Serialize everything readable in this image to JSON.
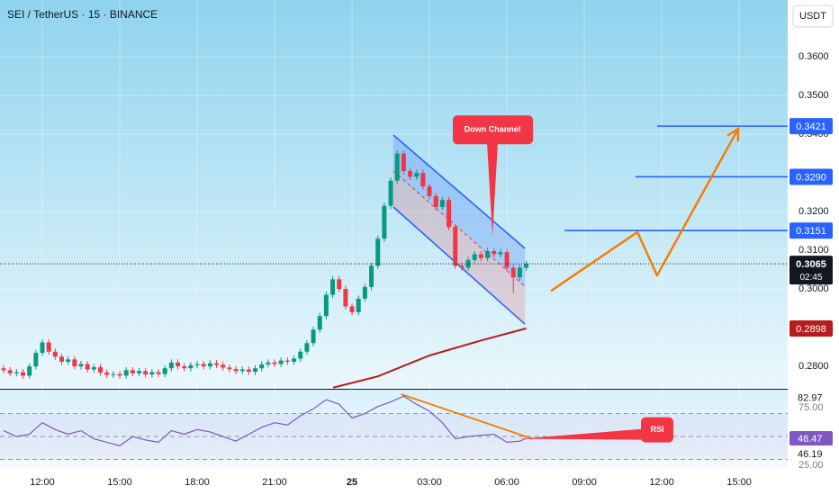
{
  "chart_data": [
    {
      "type": "candlestick",
      "title": "SEI / TetherUS · 15 · BINANCE",
      "currency": "USDT",
      "countdown": "02:45",
      "xlim": [
        10.36,
        40.88
      ],
      "xticks": [
        {
          "value": 12,
          "label": "12:00"
        },
        {
          "value": 15,
          "label": "15:00"
        },
        {
          "value": 18,
          "label": "18:00"
        },
        {
          "value": 21,
          "label": "21:00"
        },
        {
          "value": 24,
          "label": "25"
        },
        {
          "value": 27,
          "label": "03:00"
        },
        {
          "value": 30,
          "label": "06:00"
        },
        {
          "value": 33,
          "label": "09:00"
        },
        {
          "value": 36,
          "label": "12:00"
        },
        {
          "value": 39,
          "label": "15:00"
        }
      ],
      "ylim": [
        0.2742,
        0.3747
      ],
      "yticks": [
        {
          "value": 0.36,
          "label": "0.3600"
        },
        {
          "value": 0.35,
          "label": "0.3500"
        },
        {
          "value": 0.34,
          "label": "0.3400"
        },
        {
          "value": 0.32,
          "label": "0.3200"
        },
        {
          "value": 0.31,
          "label": "0.3100"
        },
        {
          "value": 0.3,
          "label": "0.3000"
        },
        {
          "value": 0.28,
          "label": "0.2800"
        }
      ],
      "grid": true,
      "up_color": "#089981",
      "down_color": "#f23645",
      "x": [
        10.5,
        10.75,
        11,
        11.25,
        11.5,
        11.75,
        12,
        12.25,
        12.5,
        12.75,
        13,
        13.25,
        13.5,
        13.75,
        14,
        14.25,
        14.5,
        14.75,
        15,
        15.25,
        15.5,
        15.75,
        16,
        16.25,
        16.5,
        16.75,
        17,
        17.25,
        17.5,
        17.75,
        18,
        18.25,
        18.5,
        18.75,
        19,
        19.25,
        19.5,
        19.75,
        20,
        20.25,
        20.5,
        20.75,
        21,
        21.25,
        21.5,
        21.75,
        22,
        22.25,
        22.5,
        22.75,
        23,
        23.25,
        23.5,
        23.75,
        24,
        24.25,
        24.5,
        24.75,
        25,
        25.25,
        25.5,
        25.75,
        26,
        26.25,
        26.5,
        26.75,
        27,
        27.25,
        27.5,
        27.75,
        28,
        28.25,
        28.5,
        28.75,
        29,
        29.25,
        29.5,
        29.75,
        30,
        30.25,
        30.5,
        30.75
      ],
      "open": [
        0.2795,
        0.279,
        0.2782,
        0.2785,
        0.2776,
        0.28,
        0.2835,
        0.2862,
        0.2838,
        0.2825,
        0.2812,
        0.2818,
        0.28,
        0.2806,
        0.2792,
        0.2798,
        0.2784,
        0.2778,
        0.278,
        0.2776,
        0.279,
        0.2782,
        0.2788,
        0.2779,
        0.2785,
        0.278,
        0.2795,
        0.281,
        0.28,
        0.2795,
        0.2803,
        0.2806,
        0.28,
        0.2808,
        0.2804,
        0.2797,
        0.2793,
        0.2788,
        0.2792,
        0.2786,
        0.2795,
        0.2805,
        0.281,
        0.2806,
        0.2815,
        0.2812,
        0.282,
        0.2838,
        0.286,
        0.2895,
        0.293,
        0.2985,
        0.3025,
        0.3,
        0.2955,
        0.294,
        0.2975,
        0.3005,
        0.306,
        0.313,
        0.3215,
        0.328,
        0.335,
        0.3305,
        0.329,
        0.33,
        0.3265,
        0.324,
        0.3212,
        0.323,
        0.316,
        0.306,
        0.3055,
        0.3075,
        0.309,
        0.308,
        0.3098,
        0.309,
        0.3095,
        0.3055,
        0.303,
        0.3055
      ],
      "high": [
        0.2803,
        0.2798,
        0.2793,
        0.2793,
        0.2808,
        0.2843,
        0.287,
        0.287,
        0.2846,
        0.2833,
        0.2826,
        0.2826,
        0.2814,
        0.2814,
        0.2806,
        0.2806,
        0.2792,
        0.2788,
        0.2788,
        0.2798,
        0.2798,
        0.2796,
        0.2796,
        0.2793,
        0.2793,
        0.2803,
        0.2818,
        0.2818,
        0.2808,
        0.2811,
        0.2814,
        0.2814,
        0.2816,
        0.2816,
        0.2812,
        0.2805,
        0.2801,
        0.28,
        0.28,
        0.2803,
        0.2813,
        0.2818,
        0.2818,
        0.2823,
        0.2823,
        0.2828,
        0.2846,
        0.2868,
        0.2903,
        0.2938,
        0.2993,
        0.3033,
        0.3033,
        0.3008,
        0.2963,
        0.2983,
        0.3013,
        0.3068,
        0.3138,
        0.3223,
        0.3288,
        0.3358,
        0.3358,
        0.3313,
        0.3308,
        0.3308,
        0.3273,
        0.3248,
        0.3238,
        0.3238,
        0.3168,
        0.3068,
        0.3083,
        0.3098,
        0.3098,
        0.3106,
        0.3106,
        0.3103,
        0.3103,
        0.3063,
        0.3063,
        0.3073
      ],
      "low": [
        0.2782,
        0.2774,
        0.2774,
        0.2768,
        0.2768,
        0.2792,
        0.2827,
        0.283,
        0.2817,
        0.2804,
        0.2804,
        0.2792,
        0.2792,
        0.2784,
        0.2784,
        0.2776,
        0.277,
        0.277,
        0.2768,
        0.2768,
        0.2774,
        0.2774,
        0.2771,
        0.2771,
        0.2772,
        0.2772,
        0.2787,
        0.2792,
        0.2787,
        0.2787,
        0.2795,
        0.2792,
        0.2792,
        0.2796,
        0.2789,
        0.2785,
        0.278,
        0.278,
        0.2778,
        0.2778,
        0.2787,
        0.2797,
        0.2798,
        0.2798,
        0.2804,
        0.2804,
        0.2812,
        0.283,
        0.2852,
        0.2887,
        0.2922,
        0.2977,
        0.2992,
        0.2947,
        0.2932,
        0.2932,
        0.2967,
        0.2997,
        0.3052,
        0.3122,
        0.3207,
        0.3272,
        0.3297,
        0.3282,
        0.3282,
        0.3257,
        0.3232,
        0.3204,
        0.3204,
        0.3152,
        0.3052,
        0.3047,
        0.3047,
        0.3067,
        0.3072,
        0.3072,
        0.3082,
        0.3082,
        0.3047,
        0.299,
        0.3022,
        0.3047
      ],
      "close": [
        0.279,
        0.2782,
        0.2785,
        0.2776,
        0.28,
        0.2835,
        0.2862,
        0.2838,
        0.2825,
        0.2812,
        0.2818,
        0.28,
        0.2806,
        0.2792,
        0.2798,
        0.2784,
        0.2778,
        0.278,
        0.2776,
        0.279,
        0.2782,
        0.2788,
        0.2779,
        0.2785,
        0.278,
        0.2795,
        0.281,
        0.28,
        0.2795,
        0.2803,
        0.2806,
        0.28,
        0.2808,
        0.2804,
        0.2797,
        0.2793,
        0.2788,
        0.2792,
        0.2786,
        0.2795,
        0.2805,
        0.281,
        0.2806,
        0.2815,
        0.2812,
        0.282,
        0.2838,
        0.286,
        0.2895,
        0.293,
        0.2985,
        0.3025,
        0.3,
        0.2955,
        0.294,
        0.2975,
        0.3005,
        0.306,
        0.313,
        0.3215,
        0.328,
        0.335,
        0.3305,
        0.329,
        0.33,
        0.3265,
        0.324,
        0.3212,
        0.323,
        0.316,
        0.306,
        0.3055,
        0.3075,
        0.309,
        0.308,
        0.3098,
        0.309,
        0.3095,
        0.3055,
        0.303,
        0.3055,
        0.3065
      ],
      "moving_average": {
        "color": "#b71c1c",
        "x": [
          23.27,
          25,
          27,
          29,
          30.75
        ],
        "values": [
          0.2745,
          0.2774,
          0.2828,
          0.2867,
          0.2898
        ]
      },
      "levels": [
        {
          "from": 35.82,
          "value": 0.3421
        },
        {
          "from": 34.98,
          "value": 0.329,
          "label": "0.3290"
        },
        {
          "from": 32.23,
          "value": 0.3151
        }
      ],
      "level_color": "#2962ff",
      "channel": {
        "x": [
          25.6,
          30.7
        ],
        "upper": [
          0.3398,
          0.3105
        ],
        "lower": [
          0.3212,
          0.2909
        ]
      },
      "projection": {
        "color": "#f57c00",
        "x": [
          31.71,
          35.06,
          35.82,
          38.96
        ],
        "values": [
          0.2995,
          0.3147,
          0.3035,
          0.3414
        ]
      },
      "callout": {
        "text": "Down Channel",
        "x": 29.44,
        "value": 0.3137
      }
    },
    {
      "type": "line",
      "color": "#7e57c2",
      "ylim": [
        22.7,
        91.4
      ],
      "yticks": [
        {
          "value": 75,
          "label": "75.00"
        },
        {
          "value": 25,
          "label": "25.00"
        }
      ],
      "levels": [
        70,
        50,
        30
      ],
      "x": [
        10.5,
        11,
        11.5,
        12,
        12.5,
        13,
        13.5,
        14,
        14.5,
        15,
        15.5,
        16,
        16.5,
        17,
        17.5,
        18,
        18.5,
        19,
        19.5,
        20,
        20.5,
        21,
        21.5,
        22,
        22.5,
        23,
        23.5,
        24,
        24.5,
        25,
        25.5,
        26,
        26.5,
        27,
        27.5,
        28,
        28.5,
        29,
        29.5,
        30,
        30.5,
        30.75
      ],
      "values": [
        55,
        50,
        52,
        62,
        56,
        52,
        55,
        48,
        45,
        42,
        50,
        47,
        45,
        55,
        52,
        56,
        54,
        50,
        46,
        52,
        58,
        62,
        60,
        68,
        74,
        82,
        78,
        66,
        70,
        76,
        80,
        85,
        78,
        72,
        62,
        48,
        50,
        51,
        52,
        45,
        46,
        48.47
      ],
      "readouts": [
        82.97,
        46.19
      ],
      "divergence": {
        "color": "#f57c00",
        "x": [
          25.9,
          31
        ],
        "values": [
          86.7,
          48
        ]
      },
      "callout": {
        "text": "RSI",
        "x": 30.52,
        "value": 48
      }
    }
  ]
}
